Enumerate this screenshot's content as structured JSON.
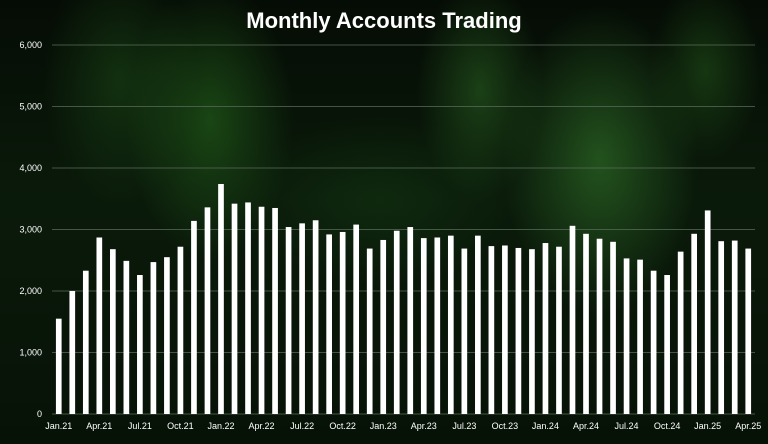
{
  "chart_data": {
    "type": "bar",
    "title": "Monthly Accounts Trading",
    "xlabel": "",
    "ylabel": "",
    "ylim": [
      0,
      6000
    ],
    "yticks": [
      0,
      1000,
      2000,
      3000,
      4000,
      5000,
      6000
    ],
    "ytick_labels": [
      "0",
      "1,000",
      "2,000",
      "3,000",
      "4,000",
      "5,000",
      "6,000"
    ],
    "grid": true,
    "colors": {
      "bar": "#ffffff",
      "grid": "#5a6b5a",
      "text": "#ffffff"
    },
    "categories": [
      "Jan.21",
      "Feb.21",
      "Mar.21",
      "Apr.21",
      "May.21",
      "Jun.21",
      "Jul.21",
      "Aug.21",
      "Sep.21",
      "Oct.21",
      "Nov.21",
      "Dec.21",
      "Jan.22",
      "Feb.22",
      "Mar.22",
      "Apr.22",
      "May.22",
      "Jun.22",
      "Jul.22",
      "Aug.22",
      "Sep.22",
      "Oct.22",
      "Nov.22",
      "Dec.22",
      "Jan.23",
      "Feb.23",
      "Mar.23",
      "Apr.23",
      "May.23",
      "Jun.23",
      "Jul.23",
      "Aug.23",
      "Sep.23",
      "Oct.23",
      "Nov.23",
      "Dec.23",
      "Jan.24",
      "Feb.24",
      "Mar.24",
      "Apr.24",
      "May.24",
      "Jun.24",
      "Jul.24",
      "Aug.24",
      "Sep.24",
      "Oct.24",
      "Nov.24",
      "Dec.24",
      "Jan.25",
      "Feb.25",
      "Mar.25",
      "Apr.25"
    ],
    "xtick_labels_shown": [
      "Jan.21",
      "Apr.21",
      "Jul.21",
      "Oct.21",
      "Jan.22",
      "Apr.22",
      "Jul.22",
      "Oct.22",
      "Jan.23",
      "Apr.23",
      "Jul.23",
      "Oct.23",
      "Jan.24",
      "Apr.24",
      "Jul.24",
      "Oct.24",
      "Jan.25",
      "Apr.25"
    ],
    "values": [
      1550,
      2000,
      2330,
      2870,
      2680,
      2490,
      2260,
      2470,
      2550,
      2720,
      3140,
      3360,
      3740,
      3420,
      3440,
      3370,
      3350,
      3040,
      3100,
      3150,
      2920,
      2960,
      3080,
      2690,
      2830,
      2980,
      3040,
      2860,
      2870,
      2900,
      2690,
      2900,
      2730,
      2740,
      2700,
      2680,
      2780,
      2720,
      3060,
      2930,
      2850,
      2800,
      2530,
      2510,
      2330,
      2260,
      2640,
      2930,
      3310,
      2810,
      2820,
      2690
    ]
  }
}
